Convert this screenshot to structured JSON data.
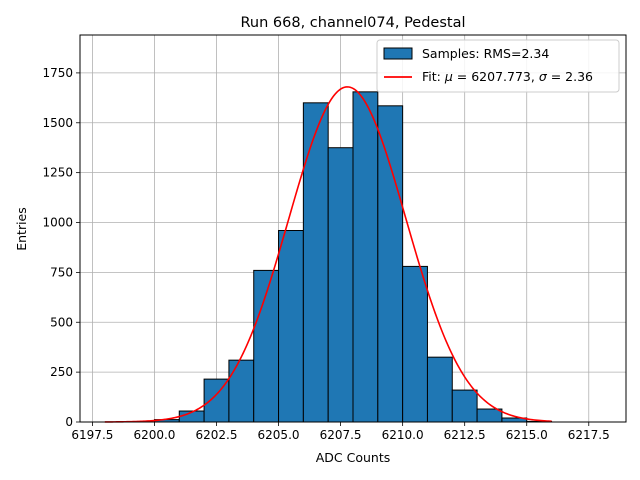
{
  "chart_data": {
    "type": "bar",
    "title": "Run 668, channel074, Pedestal",
    "xlabel": "ADC Counts",
    "ylabel": "Entries",
    "xlim": [
      6197,
      6219
    ],
    "ylim": [
      0,
      1940
    ],
    "xticks": [
      6197.5,
      6200.0,
      6202.5,
      6205.0,
      6207.5,
      6210.0,
      6212.5,
      6215.0,
      6217.5
    ],
    "xtick_labels": [
      "6197.5",
      "6200.0",
      "6202.5",
      "6205.0",
      "6207.5",
      "6210.0",
      "6212.5",
      "6215.0",
      "6217.5"
    ],
    "yticks": [
      0,
      250,
      500,
      750,
      1000,
      1250,
      1500,
      1750
    ],
    "ytick_labels": [
      "0",
      "250",
      "500",
      "750",
      "1000",
      "1250",
      "1500",
      "1750"
    ],
    "grid": true,
    "legend_position": "top-right",
    "histogram": {
      "name": "Samples: RMS=2.34",
      "bin_width": 1,
      "bin_edges_left": [
        6200,
        6201,
        6202,
        6203,
        6204,
        6205,
        6206,
        6207,
        6208,
        6209,
        6210,
        6211,
        6212,
        6213,
        6214,
        6215
      ],
      "counts": [
        12,
        55,
        215,
        310,
        760,
        960,
        1600,
        1375,
        1655,
        1585,
        780,
        325,
        160,
        65,
        20,
        3
      ],
      "color": "#1f77b4",
      "edge_color": "#000000"
    },
    "fit": {
      "name_prefix": "Fit: ",
      "mu_symbol": "μ",
      "sigma_symbol": "σ",
      "mu": 6207.773,
      "sigma": 2.36,
      "amplitude": 1680,
      "x_range": [
        6198,
        6216
      ],
      "color": "#ff0000",
      "label_mid": " = 6207.773, ",
      "label_end": " = 2.36"
    }
  }
}
